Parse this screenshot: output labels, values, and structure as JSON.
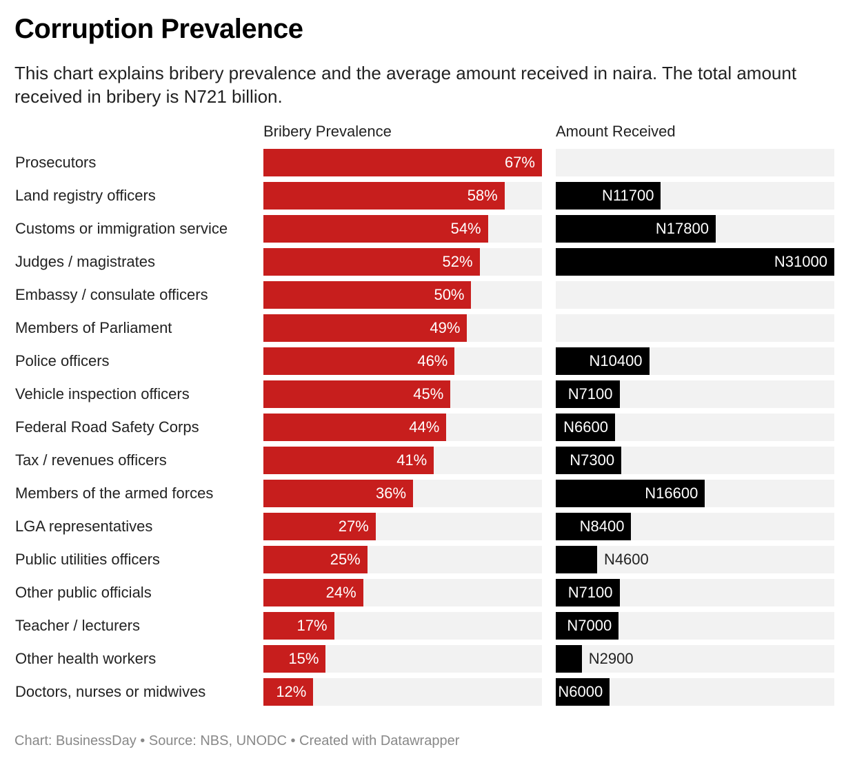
{
  "title": "Corruption Prevalence",
  "subtitle": "This chart explains bribery prevalence and the average amount received in naira. The total amount received in bribery is N721 billion.",
  "footer": "Chart: BusinessDay • Source: NBS, UNODC • Created with Datawrapper",
  "chart_data": {
    "type": "bar",
    "orientation": "horizontal",
    "categories": [
      "Prosecutors",
      "Land registry officers",
      "Customs or immigration service",
      "Judges / magistrates",
      "Embassy / consulate officers",
      "Members of Parliament",
      "Police officers",
      "Vehicle inspection officers",
      "Federal Road Safety Corps",
      "Tax / revenues officers",
      "Members of the armed forces",
      "LGA representatives",
      "Public utilities officers",
      "Other public officials",
      "Teacher / lecturers",
      "Other health workers",
      "Doctors, nurses or midwives"
    ],
    "series": [
      {
        "name": "Bribery Prevalence",
        "unit": "%",
        "color": "#c71e1d",
        "values": [
          67,
          58,
          54,
          52,
          50,
          49,
          46,
          45,
          44,
          41,
          36,
          27,
          25,
          24,
          17,
          15,
          12
        ],
        "labels": [
          "67%",
          "58%",
          "54%",
          "52%",
          "50%",
          "49%",
          "46%",
          "45%",
          "44%",
          "41%",
          "36%",
          "27%",
          "25%",
          "24%",
          "17%",
          "15%",
          "12%"
        ]
      },
      {
        "name": "Amount Received",
        "unit": "N",
        "color": "#000000",
        "values": [
          null,
          11700,
          17800,
          31000,
          null,
          null,
          10400,
          7100,
          6600,
          7300,
          16600,
          8400,
          4600,
          7100,
          7000,
          2900,
          6000
        ],
        "labels": [
          "",
          "N11700",
          "N17800",
          "N31000",
          "",
          "",
          "N10400",
          "N7100",
          "N6600",
          "N7300",
          "N16600",
          "N8400",
          "N4600",
          "N7100",
          "N7000",
          "N2900",
          "N6000"
        ]
      }
    ],
    "background_color": "#f2f2f2",
    "grid": false,
    "legend": "none"
  }
}
